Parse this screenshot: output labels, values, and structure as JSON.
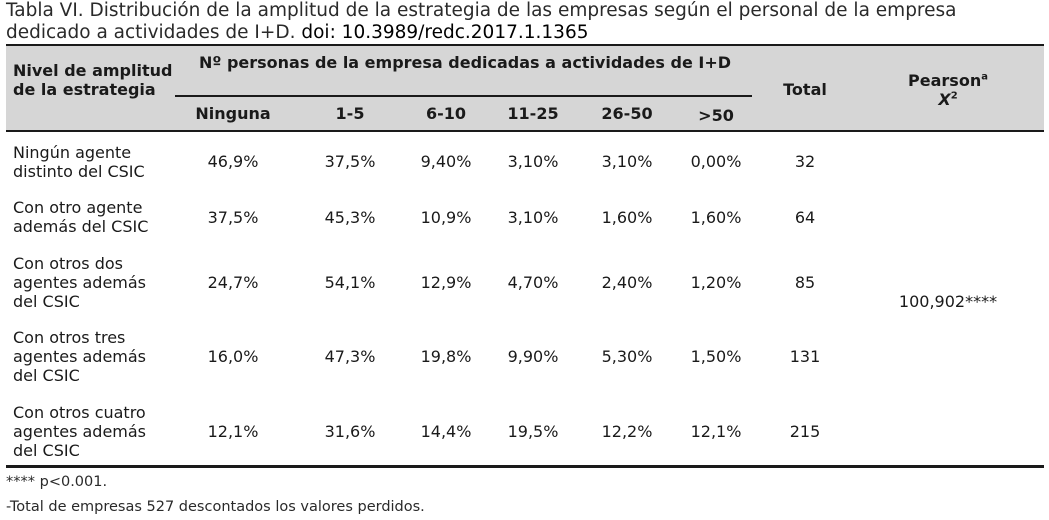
{
  "caption": {
    "text": "Tabla VI. Distribución de la amplitud de la estrategia de las empresas según el personal de la empresa dedicado a actividades de I+D.",
    "doi": " doi: 10.3989/redc.2017.1.1365"
  },
  "header": {
    "row_header": "Nivel de amplitud de la estrategia",
    "group_header": "Nº personas de la empresa dedicadas a actividades de I+D",
    "columns": [
      "Ninguna",
      "1-5",
      "6-10",
      "11-25",
      "26-50",
      ">50"
    ],
    "total": "Total",
    "pearson_label": "Pearson",
    "pearson_sup": "a",
    "chi_label": "X",
    "chi_sup": "2"
  },
  "rows": [
    {
      "label": "Ningún agente distinto del CSIC",
      "values": [
        "46,9%",
        "37,5%",
        "9,40%",
        "3,10%",
        "3,10%",
        "0,00%"
      ],
      "total": "32"
    },
    {
      "label": "Con otro agente además del CSIC",
      "values": [
        "37,5%",
        "45,3%",
        "10,9%",
        "3,10%",
        "1,60%",
        "1,60%"
      ],
      "total": "64"
    },
    {
      "label": "Con otros dos agentes además del CSIC",
      "values": [
        "24,7%",
        "54,1%",
        "12,9%",
        "4,70%",
        "2,40%",
        "1,20%"
      ],
      "total": "85"
    },
    {
      "label": "Con otros tres agentes además del CSIC",
      "values": [
        "16,0%",
        "47,3%",
        "19,8%",
        "9,90%",
        "5,30%",
        "1,50%"
      ],
      "total": "131"
    },
    {
      "label": "Con otros cuatro agentes además del CSIC",
      "values": [
        "12,1%",
        "31,6%",
        "14,4%",
        "19,5%",
        "12,2%",
        "12,1%"
      ],
      "total": "215"
    }
  ],
  "pearson_value": "100,902****",
  "footnotes": [
    "**** p<0.001.",
    "-Total de empresas 527 descontados los valores perdidos."
  ]
}
